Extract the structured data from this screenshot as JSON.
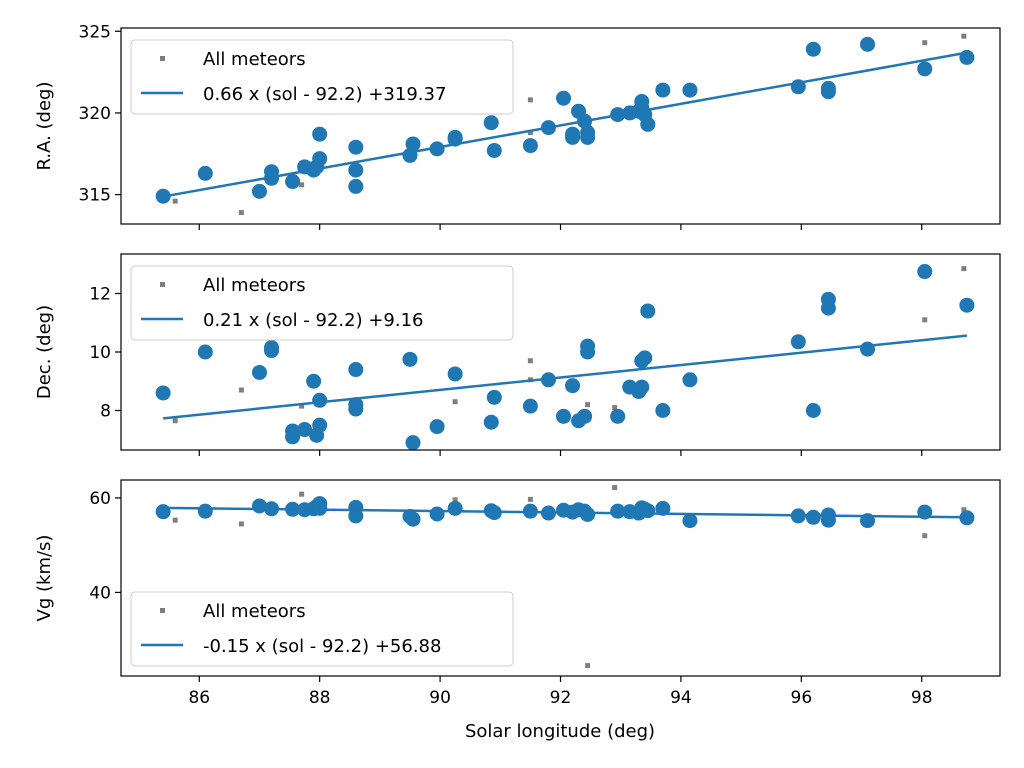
{
  "colors": {
    "fit": "#1f77b4",
    "all_meteors": "#7f7f7f",
    "frame": "#000000"
  },
  "chart_data": [
    {
      "type": "scatter",
      "title": "",
      "xlabel": "",
      "ylabel": "R.A. (deg)",
      "xlim": [
        84.7,
        99.3
      ],
      "ylim": [
        313.2,
        325.2
      ],
      "yticks": [
        315,
        320,
        325
      ],
      "ytick_labels": [
        "315",
        "320",
        "325"
      ],
      "xticks": [
        86,
        88,
        90,
        92,
        94,
        96,
        98
      ],
      "xtick_labels": [],
      "legend": {
        "loc": "upper-left",
        "all_label": "All meteors",
        "fit_label": "0.66 x (sol - 92.2) +319.37"
      },
      "fit": {
        "x": [
          85.4,
          98.75
        ],
        "y": [
          314.88,
          323.69
        ]
      },
      "all_meteors": {
        "x": [
          85.6,
          86.7,
          87.7,
          91.5,
          91.5,
          92.9,
          98.05,
          98.7
        ],
        "y": [
          314.6,
          313.9,
          315.6,
          320.8,
          318.8,
          320.1,
          324.3,
          324.7
        ]
      },
      "selected": {
        "x": [
          85.4,
          86.1,
          87.0,
          87.2,
          87.2,
          87.55,
          87.75,
          87.9,
          87.95,
          88.0,
          88.0,
          88.6,
          88.6,
          88.6,
          89.5,
          89.55,
          89.95,
          90.25,
          90.25,
          90.85,
          90.9,
          91.5,
          91.8,
          92.05,
          92.2,
          92.2,
          92.3,
          92.4,
          92.45,
          92.45,
          92.95,
          93.15,
          93.3,
          93.35,
          93.35,
          93.4,
          93.45,
          93.7,
          94.15,
          95.95,
          96.2,
          96.45,
          96.45,
          97.1,
          98.05,
          98.75
        ],
        "y": [
          314.9,
          316.3,
          315.2,
          316.4,
          316.0,
          315.8,
          316.7,
          316.5,
          316.7,
          317.2,
          318.7,
          317.9,
          316.5,
          315.5,
          317.4,
          318.1,
          317.8,
          318.5,
          318.4,
          319.4,
          317.7,
          318.0,
          319.1,
          320.9,
          318.5,
          318.7,
          320.1,
          319.5,
          318.5,
          318.8,
          319.9,
          320.0,
          320.1,
          320.7,
          320.3,
          319.9,
          319.3,
          321.4,
          321.4,
          321.6,
          323.9,
          321.5,
          321.3,
          324.2,
          322.7,
          323.4
        ]
      }
    },
    {
      "type": "scatter",
      "title": "",
      "xlabel": "",
      "ylabel": "Dec. (deg)",
      "xlim": [
        84.7,
        99.3
      ],
      "ylim": [
        6.65,
        13.35
      ],
      "yticks": [
        8,
        10,
        12
      ],
      "ytick_labels": [
        "8",
        "10",
        "12"
      ],
      "xticks": [
        86,
        88,
        90,
        92,
        94,
        96,
        98
      ],
      "xtick_labels": [],
      "legend": {
        "loc": "upper-left",
        "all_label": "All meteors",
        "fit_label": "0.21 x (sol - 92.2) +9.16"
      },
      "fit": {
        "x": [
          85.4,
          98.75
        ],
        "y": [
          7.73,
          10.56
        ]
      },
      "all_meteors": {
        "x": [
          85.6,
          86.7,
          87.7,
          90.25,
          91.5,
          91.5,
          92.45,
          92.9,
          98.05,
          98.7
        ],
        "y": [
          7.65,
          8.7,
          8.15,
          8.3,
          9.7,
          9.05,
          8.2,
          8.1,
          11.1,
          12.85
        ]
      },
      "selected": {
        "x": [
          85.4,
          86.1,
          87.0,
          87.2,
          87.2,
          87.55,
          87.55,
          87.75,
          87.9,
          87.95,
          88.0,
          88.0,
          88.6,
          88.6,
          88.6,
          89.5,
          89.55,
          89.95,
          90.25,
          90.85,
          90.9,
          91.5,
          91.8,
          92.05,
          92.2,
          92.3,
          92.4,
          92.45,
          92.45,
          92.95,
          93.15,
          93.3,
          93.35,
          93.35,
          93.4,
          93.45,
          93.7,
          94.15,
          95.95,
          96.2,
          96.45,
          96.45,
          97.1,
          98.05,
          98.75
        ],
        "y": [
          8.6,
          10.0,
          9.3,
          10.05,
          10.15,
          7.1,
          7.3,
          7.35,
          9.0,
          7.15,
          7.5,
          8.35,
          9.4,
          8.2,
          8.05,
          9.75,
          6.9,
          7.45,
          9.25,
          7.6,
          8.45,
          8.15,
          9.05,
          7.8,
          8.85,
          7.65,
          7.8,
          10.2,
          10.0,
          7.8,
          8.8,
          8.65,
          8.8,
          9.7,
          9.8,
          11.4,
          8.0,
          9.05,
          10.35,
          8.0,
          11.8,
          11.5,
          10.1,
          12.75,
          11.6
        ]
      }
    },
    {
      "type": "scatter",
      "title": "",
      "xlabel": "Solar longitude (deg)",
      "ylabel": "Vg (km/s)",
      "xlim": [
        84.7,
        99.3
      ],
      "ylim": [
        22.3,
        63.8
      ],
      "yticks": [
        40,
        60
      ],
      "ytick_labels": [
        "40",
        "60"
      ],
      "xticks": [
        86,
        88,
        90,
        92,
        94,
        96,
        98
      ],
      "xtick_labels": [
        "86",
        "88",
        "90",
        "92",
        "94",
        "96",
        "98"
      ],
      "legend": {
        "loc": "lower-left",
        "all_label": "All meteors",
        "fit_label": "-0.15 x (sol - 92.2) +56.88"
      },
      "fit": {
        "x": [
          85.4,
          98.75
        ],
        "y": [
          57.9,
          55.9
        ]
      },
      "all_meteors": {
        "x": [
          85.6,
          86.7,
          87.7,
          90.25,
          91.5,
          92.45,
          92.9,
          98.05,
          98.7
        ],
        "y": [
          55.3,
          54.5,
          60.8,
          59.6,
          59.7,
          24.5,
          62.2,
          52.0,
          57.5
        ]
      },
      "selected": {
        "x": [
          85.4,
          86.1,
          87.0,
          87.2,
          87.55,
          87.75,
          87.9,
          87.95,
          88.0,
          88.0,
          88.6,
          88.6,
          89.5,
          89.55,
          89.95,
          90.25,
          90.85,
          90.9,
          91.5,
          91.8,
          92.05,
          92.2,
          92.3,
          92.4,
          92.45,
          92.95,
          93.15,
          93.3,
          93.35,
          93.4,
          93.45,
          93.7,
          94.15,
          95.95,
          96.2,
          96.45,
          96.45,
          97.1,
          98.05,
          98.75
        ],
        "y": [
          57.1,
          57.2,
          58.3,
          57.7,
          57.6,
          57.5,
          57.7,
          58.2,
          58.8,
          57.8,
          58.0,
          56.2,
          56.1,
          55.5,
          56.6,
          57.8,
          57.3,
          56.9,
          57.2,
          56.8,
          57.4,
          57.0,
          57.5,
          57.2,
          56.5,
          57.2,
          57.1,
          56.8,
          57.9,
          57.6,
          57.3,
          57.8,
          55.2,
          56.2,
          55.9,
          56.4,
          55.3,
          55.2,
          57.0,
          55.8
        ]
      }
    }
  ]
}
